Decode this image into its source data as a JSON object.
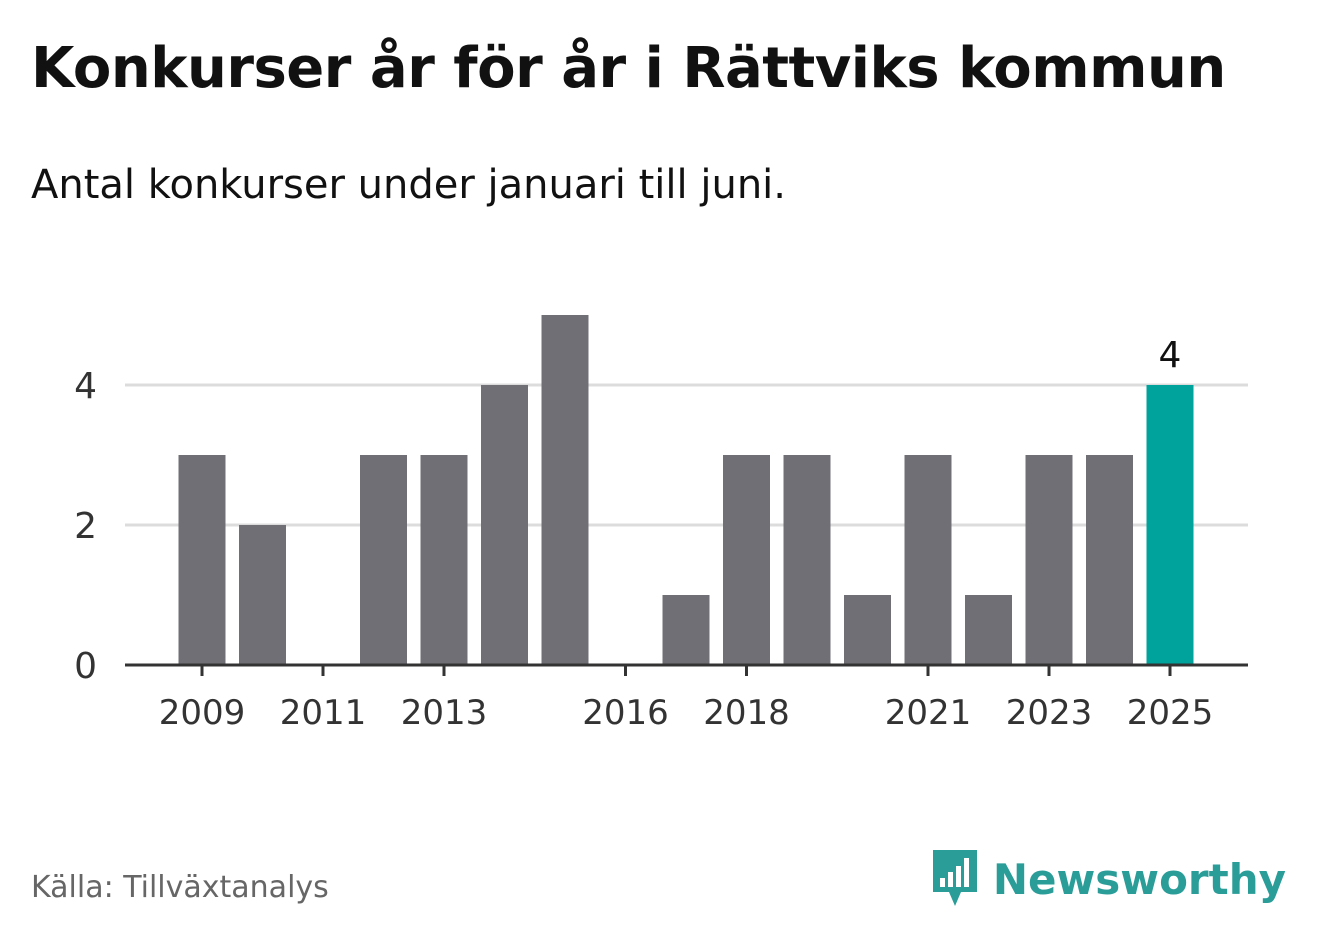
{
  "title": "Konkurser år för år i Rättviks kommun",
  "subtitle": "Antal konkurser under januari till juni.",
  "source": "Källa: Tillväxtanalys",
  "brand": {
    "name": "Newsworthy",
    "icon": "newsworthy-logo-icon",
    "color": "#2a9d99"
  },
  "chart_data": {
    "type": "bar",
    "categories": [
      "2009",
      "2010",
      "2011",
      "2012",
      "2013",
      "2014",
      "2015",
      "2016",
      "2017",
      "2018",
      "2019",
      "2020",
      "2021",
      "2022",
      "2023",
      "2024",
      "2025"
    ],
    "values": [
      3,
      2,
      0,
      3,
      3,
      4,
      5,
      0,
      1,
      3,
      3,
      1,
      3,
      1,
      3,
      3,
      4
    ],
    "x_tick_labels": [
      "2009",
      "2011",
      "2013",
      "2016",
      "2018",
      "2021",
      "2023",
      "2025"
    ],
    "y_ticks": [
      0,
      2,
      4
    ],
    "ylim": [
      0,
      5
    ],
    "grid": true,
    "highlight": {
      "category": "2025",
      "label": "4"
    },
    "colors": {
      "bar": "#706f75",
      "highlight": "#00a39b",
      "grid": "#dcdcdc",
      "axis": "#333333"
    }
  }
}
